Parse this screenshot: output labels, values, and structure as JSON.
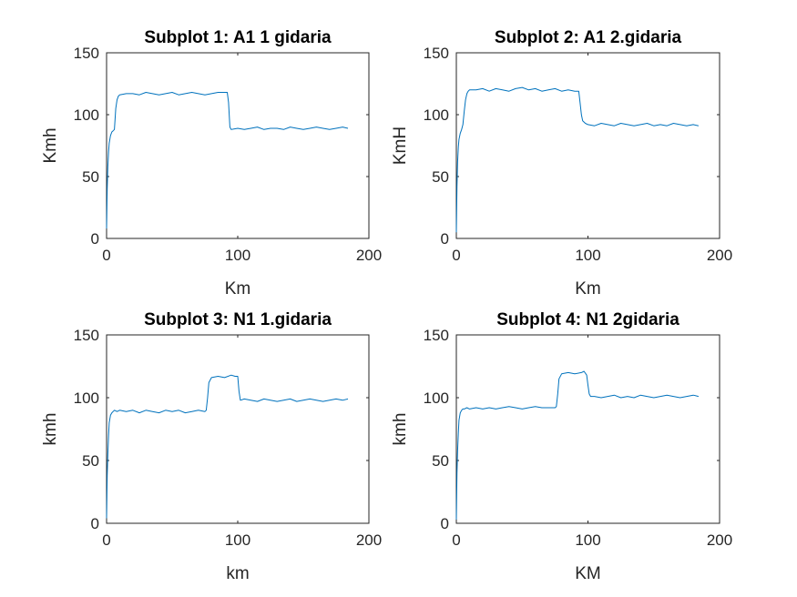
{
  "figure": {
    "background": "#ffffff",
    "line_color": "#0072bd",
    "axis_color": "#262626"
  },
  "chart_data": [
    {
      "type": "line",
      "title": "Subplot 1: A1 1 gidaria",
      "xlabel": "Km",
      "ylabel": "Kmh",
      "xlim": [
        0,
        200
      ],
      "ylim": [
        0,
        150
      ],
      "xticks": [
        0,
        100,
        200
      ],
      "yticks": [
        0,
        50,
        100,
        150
      ],
      "grid": false,
      "series": [
        {
          "x": [
            0,
            0.5,
            1,
            1.5,
            2,
            3,
            4,
            5,
            6,
            7,
            8,
            9,
            10,
            15,
            20,
            25,
            30,
            35,
            40,
            45,
            50,
            55,
            60,
            65,
            70,
            75,
            80,
            85,
            90,
            92,
            93,
            94,
            95,
            100,
            105,
            110,
            115,
            120,
            125,
            130,
            135,
            140,
            145,
            150,
            155,
            160,
            165,
            170,
            175,
            180,
            184
          ],
          "y": [
            8,
            40,
            58,
            70,
            77,
            83,
            86,
            87,
            88,
            105,
            112,
            115,
            116,
            117,
            117,
            116,
            118,
            117,
            116,
            117,
            118,
            116,
            117,
            118,
            117,
            116,
            117,
            118,
            118,
            118,
            110,
            90,
            88,
            89,
            88,
            89,
            90,
            88,
            89,
            89,
            88,
            90,
            89,
            88,
            89,
            90,
            89,
            88,
            89,
            90,
            89
          ]
        }
      ]
    },
    {
      "type": "line",
      "title": "Subplot 2: A1 2.gidaria",
      "xlabel": "Km",
      "ylabel": "KmH",
      "xlim": [
        0,
        200
      ],
      "ylim": [
        0,
        150
      ],
      "xticks": [
        0,
        100,
        200
      ],
      "yticks": [
        0,
        50,
        100,
        150
      ],
      "grid": false,
      "series": [
        {
          "x": [
            0,
            0.5,
            1,
            1.5,
            2,
            3,
            4,
            5,
            6,
            7,
            8,
            9,
            10,
            15,
            20,
            25,
            30,
            35,
            40,
            45,
            50,
            55,
            60,
            65,
            70,
            75,
            80,
            85,
            90,
            93,
            94,
            95,
            96,
            98,
            100,
            105,
            110,
            115,
            120,
            125,
            130,
            135,
            140,
            145,
            150,
            155,
            160,
            165,
            170,
            175,
            180,
            184
          ],
          "y": [
            5,
            42,
            62,
            74,
            80,
            85,
            88,
            92,
            103,
            112,
            117,
            119,
            120,
            120,
            121,
            119,
            121,
            120,
            119,
            121,
            122,
            120,
            121,
            119,
            120,
            121,
            119,
            120,
            119,
            119,
            110,
            100,
            95,
            93,
            92,
            91,
            93,
            92,
            91,
            93,
            92,
            91,
            92,
            93,
            91,
            92,
            91,
            93,
            92,
            91,
            92,
            91
          ]
        }
      ]
    },
    {
      "type": "line",
      "title": "Subplot 3: N1 1.gidaria",
      "xlabel": "km",
      "ylabel": "kmh",
      "xlim": [
        0,
        200
      ],
      "ylim": [
        0,
        150
      ],
      "xticks": [
        0,
        100,
        200
      ],
      "yticks": [
        0,
        50,
        100,
        150
      ],
      "grid": false,
      "series": [
        {
          "x": [
            0,
            0.5,
            1,
            1.5,
            2,
            3,
            4,
            5,
            6,
            8,
            10,
            15,
            20,
            25,
            30,
            35,
            40,
            45,
            50,
            55,
            60,
            65,
            70,
            75,
            76,
            77,
            78,
            80,
            85,
            90,
            95,
            98,
            100,
            101,
            102,
            105,
            110,
            115,
            120,
            125,
            130,
            135,
            140,
            145,
            150,
            155,
            160,
            165,
            170,
            175,
            180,
            184
          ],
          "y": [
            4,
            38,
            55,
            70,
            80,
            86,
            88,
            89,
            90,
            89,
            90,
            89,
            90,
            88,
            90,
            89,
            88,
            90,
            89,
            90,
            88,
            89,
            90,
            89,
            90,
            100,
            112,
            116,
            117,
            116,
            118,
            117,
            117,
            105,
            98,
            99,
            98,
            97,
            99,
            98,
            97,
            98,
            99,
            97,
            98,
            99,
            98,
            97,
            98,
            99,
            98,
            99
          ]
        }
      ]
    },
    {
      "type": "line",
      "title": "Subplot 4: N1 2gidaria",
      "xlabel": "KM",
      "ylabel": "kmh",
      "xlim": [
        0,
        200
      ],
      "ylim": [
        0,
        150
      ],
      "xticks": [
        0,
        100,
        200
      ],
      "yticks": [
        0,
        50,
        100,
        150
      ],
      "grid": false,
      "series": [
        {
          "x": [
            0,
            0.5,
            1,
            1.5,
            2,
            3,
            4,
            5,
            6,
            8,
            10,
            15,
            20,
            25,
            30,
            35,
            40,
            45,
            50,
            55,
            60,
            65,
            70,
            75,
            76,
            77,
            78,
            80,
            85,
            90,
            95,
            97,
            99,
            100,
            101,
            102,
            105,
            110,
            115,
            120,
            125,
            130,
            135,
            140,
            145,
            150,
            155,
            160,
            165,
            170,
            175,
            180,
            184
          ],
          "y": [
            3,
            40,
            58,
            72,
            82,
            88,
            90,
            91,
            91,
            92,
            91,
            92,
            91,
            92,
            91,
            92,
            93,
            92,
            91,
            92,
            93,
            92,
            92,
            92,
            93,
            103,
            115,
            119,
            120,
            119,
            120,
            121,
            118,
            110,
            103,
            101,
            101,
            100,
            101,
            102,
            100,
            101,
            100,
            102,
            101,
            100,
            101,
            102,
            101,
            100,
            101,
            102,
            101
          ]
        }
      ]
    }
  ]
}
